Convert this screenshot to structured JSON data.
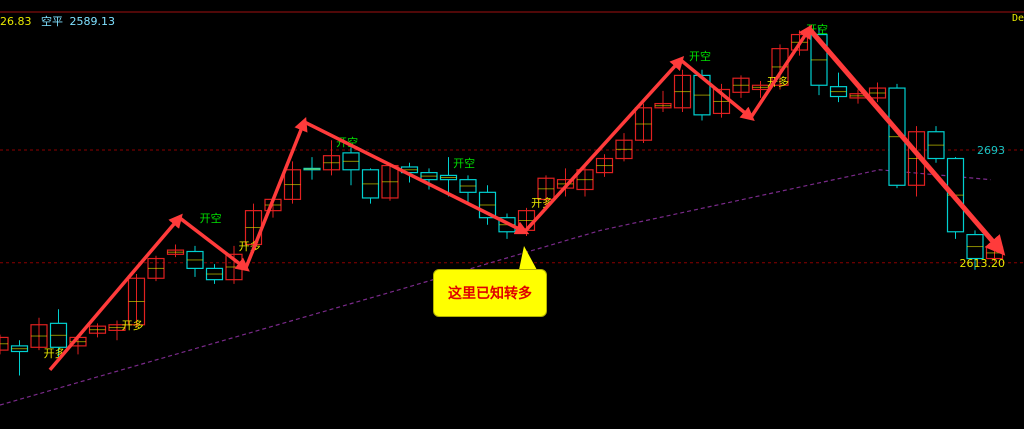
{
  "header": {
    "left_value": "26.83",
    "label": "空平",
    "value": "2589.13",
    "corner": "De"
  },
  "callout": {
    "text": "这里已知转多"
  },
  "colors": {
    "up": "#e02020",
    "down": "#00d0d0",
    "doji": "#e8e800",
    "arrow": "#ff3b3b",
    "long_label": "#e8e800",
    "short_label": "#00e000",
    "ma": "#7a2a8a",
    "grid": "#8b0000"
  },
  "chart_data": {
    "type": "candlestick",
    "ylim": [
      2495,
      2791
    ],
    "price_labels": [
      {
        "price": 2693,
        "text": "2693",
        "color": "#19c3c3"
      },
      {
        "price": 2613,
        "text": "2613.20",
        "color": "#e8e800"
      }
    ],
    "candles": [
      [
        2551,
        2560,
        2562,
        2548
      ],
      [
        2554,
        2550,
        2558,
        2533
      ],
      [
        2553,
        2569,
        2574,
        2551
      ],
      [
        2570,
        2553,
        2580,
        2544
      ],
      [
        2554,
        2560,
        2562,
        2548
      ],
      [
        2563,
        2568,
        2570,
        2560
      ],
      [
        2565,
        2569,
        2572,
        2558
      ],
      [
        2569,
        2602,
        2605,
        2567
      ],
      [
        2602,
        2616,
        2618,
        2600
      ],
      [
        2619,
        2622,
        2626,
        2617
      ],
      [
        2621,
        2609,
        2625,
        2603
      ],
      [
        2609,
        2601,
        2612,
        2598
      ],
      [
        2601,
        2619,
        2625,
        2598
      ],
      [
        2626,
        2650,
        2655,
        2620
      ],
      [
        2650,
        2658,
        2660,
        2645
      ],
      [
        2658,
        2679,
        2685,
        2655
      ],
      [
        2680,
        2679,
        2688,
        2672
      ],
      [
        2679,
        2689,
        2700,
        2675
      ],
      [
        2691,
        2679,
        2695,
        2668
      ],
      [
        2679,
        2659,
        2680,
        2655
      ],
      [
        2659,
        2682,
        2684,
        2657
      ],
      [
        2681,
        2677,
        2684,
        2670
      ],
      [
        2677,
        2672,
        2680,
        2665
      ],
      [
        2675,
        2672,
        2688,
        2660
      ],
      [
        2672,
        2663,
        2675,
        2655
      ],
      [
        2663,
        2645,
        2668,
        2640
      ],
      [
        2645,
        2635,
        2648,
        2630
      ],
      [
        2636,
        2650,
        2652,
        2632
      ],
      [
        2658,
        2673,
        2675,
        2650
      ],
      [
        2666,
        2672,
        2680,
        2660
      ],
      [
        2665,
        2679,
        2682,
        2660
      ],
      [
        2677,
        2687,
        2690,
        2674
      ],
      [
        2687,
        2700,
        2705,
        2685
      ],
      [
        2700,
        2723,
        2726,
        2698
      ],
      [
        2723,
        2726,
        2735,
        2720
      ],
      [
        2723,
        2746,
        2750,
        2720
      ],
      [
        2746,
        2718,
        2750,
        2714
      ],
      [
        2719,
        2736,
        2740,
        2716
      ],
      [
        2734,
        2744,
        2746,
        2730
      ],
      [
        2736,
        2739,
        2742,
        2730
      ],
      [
        2739,
        2765,
        2768,
        2736
      ],
      [
        2764,
        2775,
        2778,
        2760
      ],
      [
        2775,
        2739,
        2780,
        2732
      ],
      [
        2738,
        2731,
        2748,
        2727
      ],
      [
        2730,
        2733,
        2736,
        2726
      ],
      [
        2730,
        2737,
        2741,
        2727
      ],
      [
        2737,
        2668,
        2740,
        2666
      ],
      [
        2668,
        2706,
        2710,
        2660
      ],
      [
        2706,
        2687,
        2710,
        2684
      ],
      [
        2687,
        2635,
        2688,
        2630
      ],
      [
        2633,
        2616,
        2636,
        2608
      ],
      [
        2616,
        2624,
        2626,
        2614
      ]
    ],
    "moving_average": [
      [
        0,
        2512
      ],
      [
        20.5,
        2594
      ],
      [
        30.8,
        2636
      ],
      [
        45.1,
        2679
      ],
      [
        50.8,
        2672
      ]
    ],
    "trend_arrows": [
      [
        2.56,
        2537
      ],
      [
        9.2,
        2645
      ],
      [
        12.6,
        2609
      ],
      [
        15.6,
        2713
      ],
      [
        26.9,
        2635
      ],
      [
        34.9,
        2757
      ],
      [
        38.5,
        2716
      ],
      [
        41.5,
        2779
      ],
      [
        51.3,
        2622
      ]
    ],
    "signals": [
      {
        "text": "开多",
        "i": 2.8,
        "price": 2546,
        "type": "long"
      },
      {
        "text": "开多",
        "i": 6.8,
        "price": 2566,
        "type": "long"
      },
      {
        "text": "开多",
        "i": 12.8,
        "price": 2622,
        "type": "long"
      },
      {
        "text": "开多",
        "i": 27.8,
        "price": 2653,
        "type": "long"
      },
      {
        "text": "开多",
        "i": 39.9,
        "price": 2739,
        "type": "long"
      },
      {
        "text": "开空",
        "i": 10.8,
        "price": 2642,
        "type": "short"
      },
      {
        "text": "开空",
        "i": 17.8,
        "price": 2696,
        "type": "short"
      },
      {
        "text": "开空",
        "i": 23.8,
        "price": 2681,
        "type": "short"
      },
      {
        "text": "开空",
        "i": 35.9,
        "price": 2757,
        "type": "short"
      },
      {
        "text": "开空",
        "i": 41.9,
        "price": 2776,
        "type": "short"
      }
    ]
  }
}
